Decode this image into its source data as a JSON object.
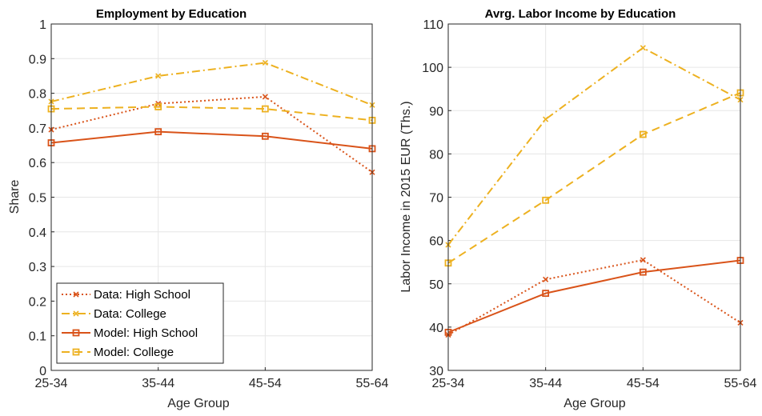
{
  "chart_data": [
    {
      "type": "line",
      "title": "Employment by Education",
      "xlabel": "Age Group",
      "ylabel": "Share",
      "categories": [
        "25-34",
        "35-44",
        "45-54",
        "55-64"
      ],
      "ylim": [
        0,
        1
      ],
      "yticks": [
        "0",
        "0.1",
        "0.2",
        "0.3",
        "0.4",
        "0.5",
        "0.6",
        "0.7",
        "0.8",
        "0.9",
        "1"
      ],
      "grid": true,
      "legend": "bottom-left",
      "series": [
        {
          "name": "Data: High School",
          "values": [
            0.695,
            0.77,
            0.79,
            0.572
          ],
          "color": "#D95319",
          "style": "dotted",
          "marker": "x"
        },
        {
          "name": "Data: College",
          "values": [
            0.776,
            0.85,
            0.888,
            0.766
          ],
          "color": "#EDB120",
          "style": "dashdot",
          "marker": "x"
        },
        {
          "name": "Model: High School",
          "values": [
            0.657,
            0.689,
            0.676,
            0.64
          ],
          "color": "#D95319",
          "style": "solid",
          "marker": "square"
        },
        {
          "name": "Model: College",
          "values": [
            0.755,
            0.761,
            0.755,
            0.722
          ],
          "color": "#EDB120",
          "style": "dashed",
          "marker": "square"
        }
      ]
    },
    {
      "type": "line",
      "title": "Avrg. Labor Income by Education",
      "xlabel": "Age Group",
      "ylabel": "Labor Income in 2015 EUR (Ths.)",
      "categories": [
        "25-34",
        "35-44",
        "45-54",
        "55-64"
      ],
      "ylim": [
        30,
        110
      ],
      "yticks": [
        "30",
        "40",
        "50",
        "60",
        "70",
        "80",
        "90",
        "100",
        "110"
      ],
      "grid": true,
      "series": [
        {
          "values": [
            38.2,
            51.0,
            55.5,
            41.0
          ],
          "color": "#D95319",
          "style": "dotted",
          "marker": "x"
        },
        {
          "values": [
            59.0,
            88.0,
            104.5,
            92.5
          ],
          "color": "#EDB120",
          "style": "dashdot",
          "marker": "x"
        },
        {
          "values": [
            38.8,
            47.8,
            52.7,
            55.4
          ],
          "color": "#D95319",
          "style": "solid",
          "marker": "square"
        },
        {
          "values": [
            54.8,
            69.3,
            84.5,
            94.1
          ],
          "color": "#EDB120",
          "style": "dashed",
          "marker": "square"
        }
      ]
    }
  ]
}
